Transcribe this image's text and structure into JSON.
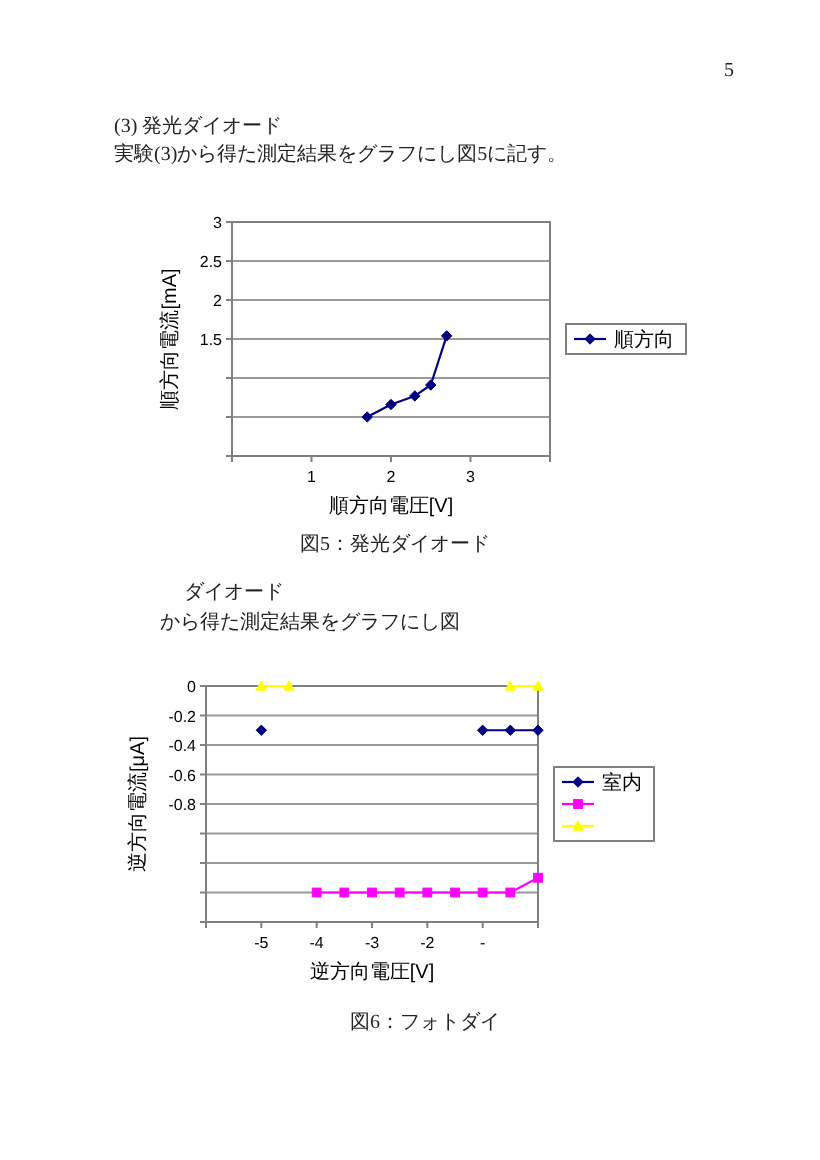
{
  "chart_data": [
    {
      "type": "line",
      "title": "(3) 発光ダイオード",
      "subtitle": "実験(3)から得た測定結果をグラフにし図5に記す。",
      "xlabel": "順方向電圧[V]",
      "ylabel": "順方向電流[mA]",
      "annotations": [
        "図5：発光ダイオード",
        "5"
      ],
      "x": [
        1.7,
        2.0,
        2.3,
        2.5,
        2.7
      ],
      "series": [
        {
          "name": "順方向",
          "color": "#000080",
          "values": [
            0.5,
            0.66,
            0.77,
            0.91,
            1.54
          ]
        }
      ],
      "xlim": [
        0,
        4
      ],
      "xticks": [
        {
          "value": 0,
          "label": null
        },
        1,
        2,
        3,
        {
          "value": 4,
          "label": null
        }
      ],
      "ylim": [
        0,
        3
      ],
      "yticks": [
        {
          "value": 0,
          "label": null
        },
        {
          "value": 0.5,
          "label": null
        },
        {
          "value": 1,
          "label": null
        },
        1.5,
        2,
        2.5,
        3
      ],
      "grid": "y",
      "legend": "right",
      "marker": "diamond",
      "line_style": "solid"
    },
    {
      "type": "line",
      "title": "ダイオード",
      "subtitle": "から得た測定結果をグラフにし図",
      "xlabel": "逆方向電圧[V]",
      "ylabel": "逆方向電流[μA]",
      "annotations": [
        "図6：フォトダイ"
      ],
      "x": [
        -5,
        -4.5,
        -4,
        -3.5,
        -3,
        -2.5,
        -2,
        -1.5,
        -1,
        -0.5,
        0
      ],
      "series": [
        {
          "name": "室内",
          "color": "#000080",
          "marker": "diamond",
          "values": [
            -0.3,
            null,
            null,
            null,
            null,
            null,
            null,
            null,
            -0.3,
            -0.3,
            -0.3
          ]
        },
        {
          "color": "#ff00ff",
          "marker": "square",
          "values": [
            null,
            null,
            -1.4,
            -1.4,
            -1.4,
            -1.4,
            -1.4,
            -1.4,
            -1.4,
            -1.4,
            -1.3
          ]
        },
        {
          "color": "#ffff00",
          "marker": "triangle",
          "values": [
            0,
            0,
            null,
            null,
            null,
            null,
            null,
            null,
            null,
            0,
            0
          ]
        }
      ],
      "xlim": [
        -6,
        0
      ],
      "xticks": [
        {
          "value": -6,
          "label": null
        },
        -5,
        -4,
        -3,
        -2,
        {
          "value": -1,
          "label": "-"
        },
        {
          "value": 0,
          "label": null
        }
      ],
      "ylim": [
        -1.6,
        0
      ],
      "yticks": [
        0,
        -0.2,
        -0.4,
        -0.6,
        -0.8,
        {
          "value": -1,
          "label": null
        },
        {
          "value": -1.2,
          "label": null
        },
        {
          "value": -1.4,
          "label": null
        },
        {
          "value": -1.6,
          "label": null
        }
      ],
      "grid": "y",
      "legend": "right",
      "line_style": "solid"
    }
  ]
}
